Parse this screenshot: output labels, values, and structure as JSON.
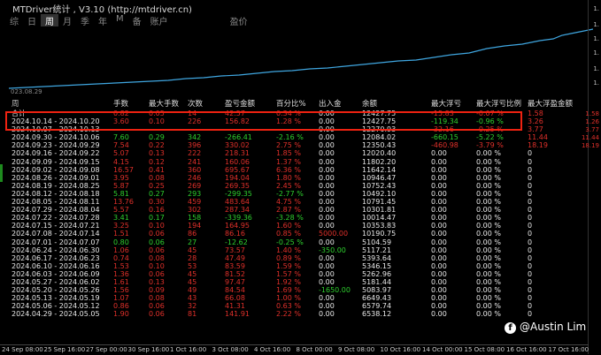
{
  "window": {
    "title": "MTDriver统计 , V3.10 (http://mtdriver.cn)"
  },
  "tabs": [
    "综",
    "日",
    "周",
    "月",
    "季",
    "年",
    "M",
    "备",
    "账户",
    "盈价"
  ],
  "active_tab": "周",
  "chart": {
    "start_date_label": "023.08.29"
  },
  "right_scale": [
    "1.",
    "1.",
    "1.",
    "1.",
    "1.",
    "1.",
    "1.58",
    "1.26",
    "3.77",
    "11.44",
    "18.19"
  ],
  "table": {
    "headers": [
      "周",
      "手数",
      "最大手数",
      "次数",
      "盈亏金额",
      "百分比%",
      "出入金",
      "余额",
      "最大浮亏",
      "最大浮亏比例",
      "最大浮盈金额"
    ],
    "rows": [
      {
        "period": "合计",
        "lots": "0.82",
        "maxlot": "0.05",
        "count": "14",
        "pnl": "42.57",
        "pct": "0.34 %",
        "io": "0.00",
        "bal": "12427.75",
        "dd": "-15.83",
        "ddp": "-0.07 %",
        "mf": "1.58",
        "color": "red",
        "total": true
      },
      {
        "period": "2024.10.14 - 2024.10.20",
        "lots": "3.60",
        "maxlot": "0.10",
        "count": "226",
        "pnl": "156.82",
        "pct": "1.28 %",
        "io": "0.00",
        "bal": "12427.75",
        "dd": "-119.34",
        "ddp": "-0.96 %",
        "mf": "3.26",
        "color": "red"
      },
      {
        "period": "2024.10.07 - 2024.10.13",
        "lots": "",
        "maxlot": "",
        "count": "",
        "pnl": "",
        "pct": "",
        "io": "0.00",
        "bal": "12270.93",
        "dd": "-32.16",
        "ddp": "-0.25 %",
        "mf": "3.77",
        "color": "red"
      },
      {
        "period": "2024.09.30 - 2024.10.06",
        "lots": "7.60",
        "maxlot": "0.29",
        "count": "342",
        "pnl": "-266.41",
        "pct": "-2.16 %",
        "io": "0.00",
        "bal": "12084.02",
        "dd": "-660.15",
        "ddp": "-5.22 %",
        "mf": "11.44",
        "color": "green"
      },
      {
        "period": "2024.09.23 - 2024.09.29",
        "lots": "7.54",
        "maxlot": "0.22",
        "count": "396",
        "pnl": "330.02",
        "pct": "2.75 %",
        "io": "0.00",
        "bal": "12350.43",
        "dd": "-460.98",
        "ddp": "-3.79 %",
        "mf": "18.19",
        "color": "red"
      },
      {
        "period": "2024.09.16 - 2024.09.22",
        "lots": "5.07",
        "maxlot": "0.13",
        "count": "222",
        "pnl": "218.31",
        "pct": "1.85 %",
        "io": "0.00",
        "bal": "12020.40",
        "dd": "0.00",
        "ddp": "0.00 %",
        "mf": "0",
        "color": "red"
      },
      {
        "period": "2024.09.09 - 2024.09.15",
        "lots": "4.15",
        "maxlot": "0.12",
        "count": "241",
        "pnl": "160.06",
        "pct": "1.37 %",
        "io": "0.00",
        "bal": "11802.20",
        "dd": "0.00",
        "ddp": "0.00 %",
        "mf": "0",
        "color": "red"
      },
      {
        "period": "2024.09.02 - 2024.09.08",
        "lots": "16.57",
        "maxlot": "0.41",
        "count": "360",
        "pnl": "695.67",
        "pct": "6.36 %",
        "io": "0.00",
        "bal": "11642.14",
        "dd": "0.00",
        "ddp": "0.00 %",
        "mf": "0",
        "color": "red"
      },
      {
        "period": "2024.08.26 - 2024.09.01",
        "lots": "3.95",
        "maxlot": "0.08",
        "count": "246",
        "pnl": "194.04",
        "pct": "1.80 %",
        "io": "0.00",
        "bal": "10946.47",
        "dd": "0.00",
        "ddp": "0.00 %",
        "mf": "0",
        "color": "red"
      },
      {
        "period": "2024.08.19 - 2024.08.25",
        "lots": "5.87",
        "maxlot": "0.25",
        "count": "269",
        "pnl": "269.35",
        "pct": "2.45 %",
        "io": "0.00",
        "bal": "10752.43",
        "dd": "0.00",
        "ddp": "0.00 %",
        "mf": "0",
        "color": "red"
      },
      {
        "period": "2024.08.12 - 2024.08.18",
        "lots": "5.81",
        "maxlot": "0.27",
        "count": "293",
        "pnl": "-299.35",
        "pct": "-2.77 %",
        "io": "0.00",
        "bal": "10492.10",
        "dd": "0.00",
        "ddp": "0.00 %",
        "mf": "0",
        "color": "green"
      },
      {
        "period": "2024.08.05 - 2024.08.11",
        "lots": "13.76",
        "maxlot": "0.30",
        "count": "459",
        "pnl": "483.64",
        "pct": "4.75 %",
        "io": "0.00",
        "bal": "10791.45",
        "dd": "0.00",
        "ddp": "0.00 %",
        "mf": "0",
        "color": "red"
      },
      {
        "period": "2024.07.29 - 2024.08.04",
        "lots": "5.57",
        "maxlot": "0.16",
        "count": "302",
        "pnl": "287.34",
        "pct": "2.87 %",
        "io": "0.00",
        "bal": "10301.81",
        "dd": "0.00",
        "ddp": "0.00 %",
        "mf": "0",
        "color": "red"
      },
      {
        "period": "2024.07.22 - 2024.07.28",
        "lots": "3.41",
        "maxlot": "0.17",
        "count": "158",
        "pnl": "-339.36",
        "pct": "-3.28 %",
        "io": "0.00",
        "bal": "10014.47",
        "dd": "0.00",
        "ddp": "0.00 %",
        "mf": "0",
        "color": "green"
      },
      {
        "period": "2024.07.15 - 2024.07.21",
        "lots": "3.25",
        "maxlot": "0.10",
        "count": "194",
        "pnl": "164.95",
        "pct": "1.60 %",
        "io": "0.00",
        "bal": "10353.83",
        "dd": "0.00",
        "ddp": "0.00 %",
        "mf": "0",
        "color": "red"
      },
      {
        "period": "2024.07.08 - 2024.07.14",
        "lots": "1.51",
        "maxlot": "0.06",
        "count": "86",
        "pnl": "86.16",
        "pct": "0.85 %",
        "io": "5000.00",
        "bal": "10190.75",
        "dd": "0.00",
        "ddp": "0.00 %",
        "mf": "0",
        "color": "red",
        "iored": true
      },
      {
        "period": "2024.07.01 - 2024.07.07",
        "lots": "0.80",
        "maxlot": "0.06",
        "count": "27",
        "pnl": "-12.62",
        "pct": "-0.25 %",
        "io": "0.00",
        "bal": "5104.59",
        "dd": "0.00",
        "ddp": "0.00 %",
        "mf": "0",
        "color": "green"
      },
      {
        "period": "2024.06.24 - 2024.06.30",
        "lots": "1.06",
        "maxlot": "0.06",
        "count": "45",
        "pnl": "73.57",
        "pct": "1.40 %",
        "io": "-350.00",
        "bal": "5117.21",
        "dd": "0.00",
        "ddp": "0.00 %",
        "mf": "0",
        "color": "red",
        "iogreen": true
      },
      {
        "period": "2024.06.17 - 2024.06.23",
        "lots": "0.74",
        "maxlot": "0.08",
        "count": "28",
        "pnl": "47.49",
        "pct": "0.89 %",
        "io": "0.00",
        "bal": "5393.64",
        "dd": "0.00",
        "ddp": "0.00 %",
        "mf": "0",
        "color": "red"
      },
      {
        "period": "2024.06.10 - 2024.06.16",
        "lots": "1.53",
        "maxlot": "0.10",
        "count": "53",
        "pnl": "83.59",
        "pct": "1.59 %",
        "io": "0.00",
        "bal": "5346.15",
        "dd": "0.00",
        "ddp": "0.00 %",
        "mf": "0",
        "color": "red"
      },
      {
        "period": "2024.06.03 - 2024.06.09",
        "lots": "1.36",
        "maxlot": "0.06",
        "count": "45",
        "pnl": "81.52",
        "pct": "1.57 %",
        "io": "0.00",
        "bal": "5262.96",
        "dd": "0.00",
        "ddp": "0.00 %",
        "mf": "0",
        "color": "red"
      },
      {
        "period": "2024.05.27 - 2024.06.02",
        "lots": "1.61",
        "maxlot": "0.13",
        "count": "45",
        "pnl": "97.47",
        "pct": "1.92 %",
        "io": "0.00",
        "bal": "5181.44",
        "dd": "0.00",
        "ddp": "0.00 %",
        "mf": "0",
        "color": "red"
      },
      {
        "period": "2024.05.20 - 2024.05.26",
        "lots": "1.56",
        "maxlot": "0.09",
        "count": "49",
        "pnl": "84.54",
        "pct": "1.69 %",
        "io": "-1650.00",
        "bal": "5083.97",
        "dd": "0.00",
        "ddp": "0.00 %",
        "mf": "0",
        "color": "red",
        "iogreen": true
      },
      {
        "period": "2024.05.13 - 2024.05.19",
        "lots": "1.07",
        "maxlot": "0.08",
        "count": "43",
        "pnl": "66.08",
        "pct": "1.00 %",
        "io": "0.00",
        "bal": "6649.43",
        "dd": "0.00",
        "ddp": "0.00 %",
        "mf": "0",
        "color": "red"
      },
      {
        "period": "2024.05.06 - 2024.05.12",
        "lots": "0.86",
        "maxlot": "0.06",
        "count": "32",
        "pnl": "41.31",
        "pct": "0.63 %",
        "io": "0.00",
        "bal": "6579.74",
        "dd": "0.00",
        "ddp": "0.00 %",
        "mf": "0",
        "color": "red"
      },
      {
        "period": "2024.04.29 - 2024.05.05",
        "lots": "1.90",
        "maxlot": "0.06",
        "count": "81",
        "pnl": "141.91",
        "pct": "2.22 %",
        "io": "0.00",
        "bal": "6538.12",
        "dd": "0.00",
        "ddp": "0.00 %",
        "mf": "0",
        "color": "red"
      }
    ]
  },
  "time_axis": [
    "24 Sep 08:00",
    "25 Sep 16:00",
    "27 Sep 00:00",
    "30 Sep 16:00",
    "1 Oct 16:00",
    "3 Oct 08:00",
    "4 Oct 16:00",
    "8 Oct 00:00",
    "9 Oct 08:00",
    "10 Oct 16:00",
    "14 Oct 00:00",
    "15 Oct 08:00",
    "16 Oct 16:00",
    "17 Oct 16:00"
  ],
  "watermark": {
    "icon": "facebook-icon",
    "text": "@Austin Lim"
  }
}
